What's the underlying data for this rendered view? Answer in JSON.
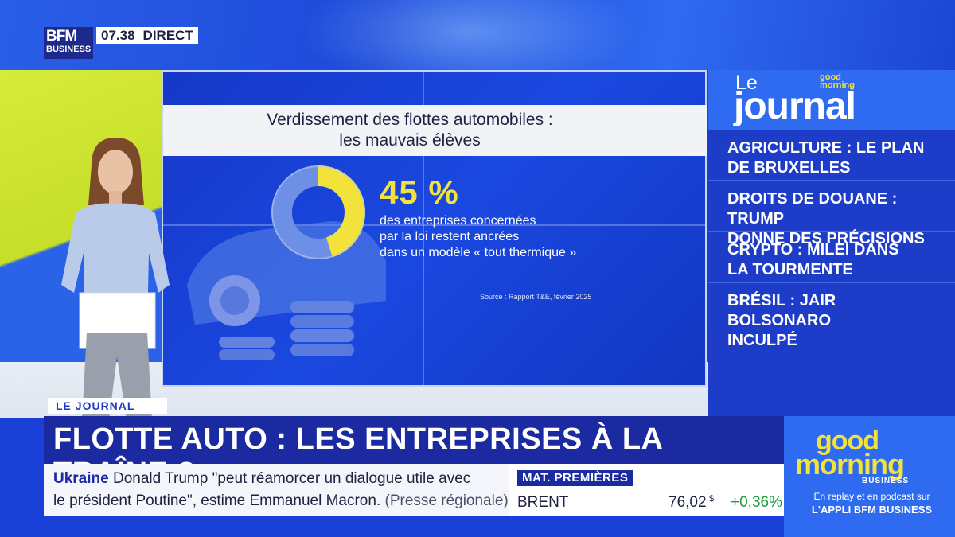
{
  "channel": {
    "logo_line1": "BFM",
    "logo_line2": "BUSINESS",
    "time": "07.38",
    "live_label": "DIRECT"
  },
  "screen": {
    "title_line1": "Verdissement des flottes automobiles :",
    "title_line2": "les mauvais élèves",
    "percent": "45 %",
    "percent_value": 45,
    "description_line1": "des entreprises concernées",
    "description_line2": "par la loi restent ancrées",
    "description_line3": "dans un modèle « tout thermique »",
    "source": "Source : Rapport T&E, février 2025",
    "accent_color": "#f3e23a"
  },
  "sidebar": {
    "le": "Le",
    "journal": "journal",
    "brand_good": "good",
    "brand_morning": "morning",
    "headlines": [
      {
        "line1": "Agriculture : le plan",
        "line2": "de Bruxelles"
      },
      {
        "line1": "Droits de douane : Trump",
        "line2": "donne des précisions"
      },
      {
        "line1": "Crypto : Milei dans",
        "line2": "la tourmente"
      },
      {
        "line1": "Brésil : Jair Bolsonaro",
        "line2": "inculpé"
      }
    ]
  },
  "lower_third": {
    "segment": "LE JOURNAL",
    "headline": "FLOTTE AUTO : LES ENTREPRISES À LA TRAÎNE ?"
  },
  "ticker": {
    "topic": "Ukraine",
    "line1_text": "Donald Trump \"peut réamorcer un dialogue utile avec",
    "line2_text": "le président Poutine\", estime Emmanuel Macron.",
    "line2_source": "(Presse régionale)"
  },
  "market": {
    "label": "MAT. PREMIÈRES",
    "name": "BRENT",
    "value": "76,02",
    "currency": "$",
    "change": "+0,36%",
    "change_color": "#1f9c3a"
  },
  "promo": {
    "good": "good",
    "morning": "morning",
    "business": "BUSINESS",
    "replay": "En replay et en podcast sur",
    "app": "L'APPLI BFM BUSINESS"
  }
}
